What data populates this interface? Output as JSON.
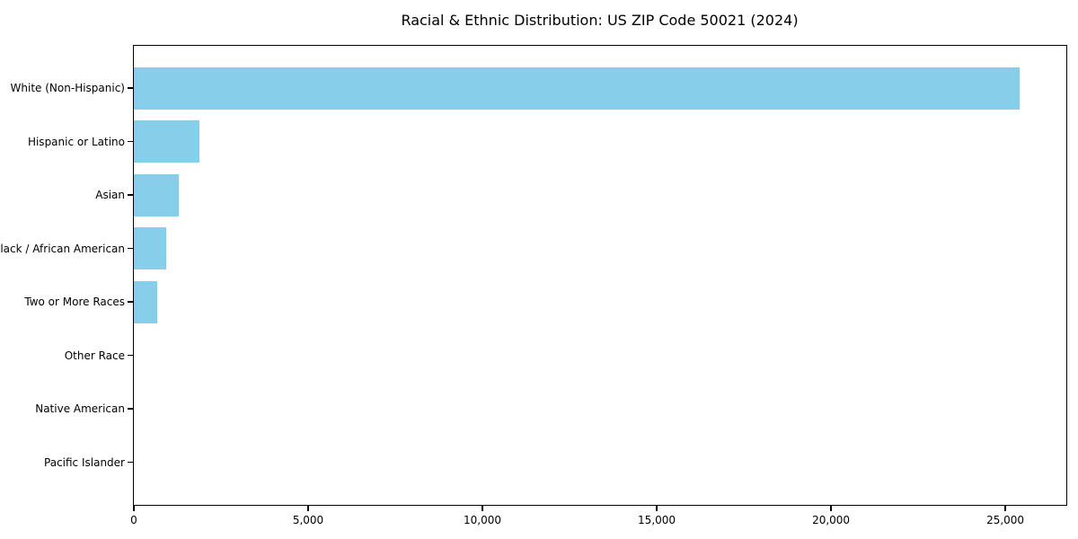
{
  "title": "Racial & Ethnic Distribution: US ZIP Code 50021 (2024)",
  "chart_data": {
    "type": "bar",
    "orientation": "horizontal",
    "title": "Racial & Ethnic Distribution: US ZIP Code 50021 (2024)",
    "categories": [
      "White (Non-Hispanic)",
      "Hispanic or Latino",
      "Asian",
      "Black / African American",
      "Two or More Races",
      "Other Race",
      "Native American",
      "Pacific Islander"
    ],
    "values": [
      25400,
      1870,
      1290,
      930,
      660,
      0,
      0,
      0
    ],
    "xlabel": "",
    "ylabel": "",
    "xlim": [
      0,
      26750
    ],
    "x_ticks": [
      0,
      5000,
      10000,
      15000,
      20000,
      25000
    ],
    "x_tick_labels": [
      "0",
      "5,000",
      "10,000",
      "15,000",
      "20,000",
      "25,000"
    ],
    "bar_color": "#87CEEB",
    "axis_color": "#000000",
    "background_color": "#ffffff",
    "grid": false,
    "legend": false
  }
}
